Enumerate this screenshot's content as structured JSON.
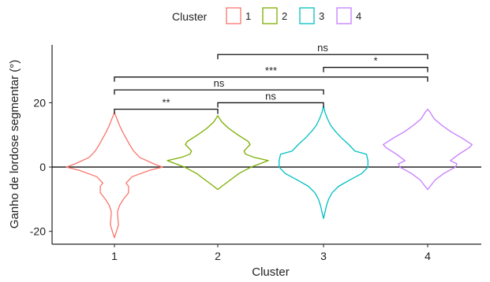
{
  "chart_data": {
    "type": "violin",
    "title": "",
    "xlabel": "Cluster",
    "ylabel": "Ganho de lordose segmentar (°)",
    "ylim": [
      -24,
      38
    ],
    "yticks": [
      -20,
      0,
      20
    ],
    "categories": [
      "1",
      "2",
      "3",
      "4"
    ],
    "grid": false,
    "zero_line": 0,
    "legend": {
      "title": "Cluster",
      "placement": "top",
      "items": [
        {
          "label": "1",
          "color": "#f8766d"
        },
        {
          "label": "2",
          "color": "#7cae00"
        },
        {
          "label": "3",
          "color": "#00bfc4"
        },
        {
          "label": "4",
          "color": "#c77cff"
        }
      ]
    },
    "series": [
      {
        "category": "1",
        "color": "#f8766d",
        "ymin": -22,
        "ymax": 17,
        "profile": [
          [
            -22,
            0.0
          ],
          [
            -20,
            0.04
          ],
          [
            -18,
            0.08
          ],
          [
            -16,
            0.07
          ],
          [
            -14,
            0.06
          ],
          [
            -12,
            0.1
          ],
          [
            -10,
            0.18
          ],
          [
            -8,
            0.28
          ],
          [
            -6,
            0.28
          ],
          [
            -5,
            0.23
          ],
          [
            -3,
            0.35
          ],
          [
            -1,
            0.7
          ],
          [
            0,
            0.95
          ],
          [
            1,
            0.78
          ],
          [
            3,
            0.5
          ],
          [
            5,
            0.38
          ],
          [
            7,
            0.3
          ],
          [
            9,
            0.23
          ],
          [
            11,
            0.16
          ],
          [
            13,
            0.1
          ],
          [
            15,
            0.05
          ],
          [
            17,
            0.0
          ]
        ]
      },
      {
        "category": "2",
        "color": "#7cae00",
        "ymin": -7,
        "ymax": 16,
        "profile": [
          [
            -7,
            0.0
          ],
          [
            -6,
            0.08
          ],
          [
            -4,
            0.25
          ],
          [
            -2,
            0.42
          ],
          [
            0,
            0.66
          ],
          [
            2,
            1.0
          ],
          [
            3,
            0.72
          ],
          [
            4,
            0.55
          ],
          [
            5,
            0.52
          ],
          [
            6,
            0.58
          ],
          [
            7,
            0.64
          ],
          [
            8,
            0.6
          ],
          [
            10,
            0.4
          ],
          [
            12,
            0.22
          ],
          [
            14,
            0.08
          ],
          [
            16,
            0.0
          ]
        ]
      },
      {
        "category": "3",
        "color": "#00bfc4",
        "ymin": -16,
        "ymax": 19,
        "profile": [
          [
            -16,
            0.0
          ],
          [
            -14,
            0.03
          ],
          [
            -12,
            0.06
          ],
          [
            -10,
            0.1
          ],
          [
            -8,
            0.17
          ],
          [
            -6,
            0.3
          ],
          [
            -4,
            0.52
          ],
          [
            -2,
            0.76
          ],
          [
            0,
            0.88
          ],
          [
            2,
            0.88
          ],
          [
            4,
            0.85
          ],
          [
            5,
            0.62
          ],
          [
            7,
            0.5
          ],
          [
            9,
            0.36
          ],
          [
            11,
            0.24
          ],
          [
            13,
            0.14
          ],
          [
            15,
            0.08
          ],
          [
            17,
            0.03
          ],
          [
            19,
            0.0
          ]
        ]
      },
      {
        "category": "4",
        "color": "#c77cff",
        "ymin": -7,
        "ymax": 18,
        "profile": [
          [
            -7,
            0.0
          ],
          [
            -6,
            0.05
          ],
          [
            -4,
            0.15
          ],
          [
            -2,
            0.32
          ],
          [
            0,
            0.55
          ],
          [
            1,
            0.58
          ],
          [
            2,
            0.45
          ],
          [
            4,
            0.62
          ],
          [
            6,
            0.82
          ],
          [
            7,
            0.88
          ],
          [
            9,
            0.68
          ],
          [
            11,
            0.46
          ],
          [
            13,
            0.28
          ],
          [
            15,
            0.13
          ],
          [
            17,
            0.05
          ],
          [
            18,
            0.0
          ]
        ]
      }
    ],
    "comparisons": [
      {
        "from": "1",
        "to": "2",
        "y": 18,
        "label": "**"
      },
      {
        "from": "2",
        "to": "3",
        "y": 20,
        "label": "ns"
      },
      {
        "from": "1",
        "to": "3",
        "y": 24,
        "label": "ns"
      },
      {
        "from": "1",
        "to": "4",
        "y": 28,
        "label": "***"
      },
      {
        "from": "3",
        "to": "4",
        "y": 31,
        "label": "*"
      },
      {
        "from": "2",
        "to": "4",
        "y": 35,
        "label": "ns"
      }
    ]
  }
}
